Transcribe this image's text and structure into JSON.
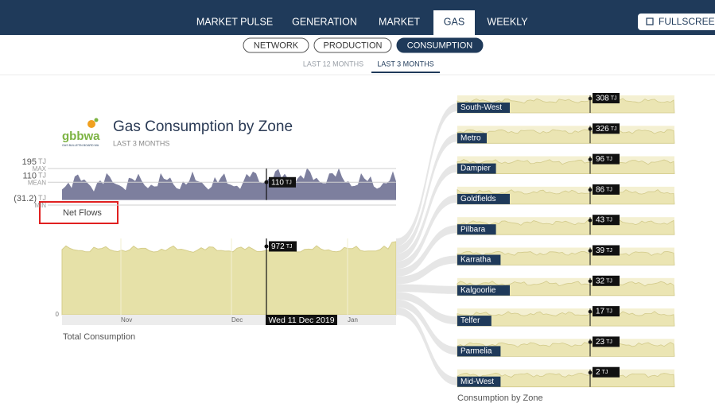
{
  "nav": {
    "items": [
      "MARKET PULSE",
      "GENERATION",
      "MARKET",
      "GAS",
      "WEEKLY"
    ],
    "active": 3,
    "fullscreen": "FULLSCREEN"
  },
  "subnav": {
    "items": [
      "NETWORK",
      "PRODUCTION",
      "CONSUMPTION"
    ],
    "active": 2
  },
  "period_tabs": {
    "items": [
      "LAST 12 MONTHS",
      "LAST 3 MONTHS"
    ],
    "active": 1
  },
  "header": {
    "logo": "gbbwa",
    "logo_caption": "GAS BULLETIN BOARD WA",
    "title": "Gas Consumption by Zone",
    "subtitle": "LAST 3 MONTHS"
  },
  "unit": "TJ",
  "net_flows": {
    "label": "Net Flows",
    "max": 195,
    "max_label": "MAX",
    "mean": 110,
    "mean_label": "MEAN",
    "min": {
      "value": -31.2,
      "label": "(31.2)"
    },
    "min_label": "MIN",
    "cursor_value": 110
  },
  "total_consumption": {
    "label": "Total Consumption",
    "axis_zero": 0,
    "months": [
      "Nov",
      "Dec",
      "Jan"
    ],
    "cursor_date": "Wed 11 Dec 2019",
    "cursor_value": 972
  },
  "zones": {
    "caption": "Consumption by Zone",
    "items": [
      {
        "name": "South-West",
        "value": 308
      },
      {
        "name": "Metro",
        "value": 326
      },
      {
        "name": "Dampier",
        "value": 96
      },
      {
        "name": "Goldfields",
        "value": 86
      },
      {
        "name": "Pilbara",
        "value": 43
      },
      {
        "name": "Karratha",
        "value": 39
      },
      {
        "name": "Kalgoorlie",
        "value": 32
      },
      {
        "name": "Telfer",
        "value": 17
      },
      {
        "name": "Parmelia",
        "value": 23
      },
      {
        "name": "Mid-West",
        "value": 2
      }
    ]
  }
}
